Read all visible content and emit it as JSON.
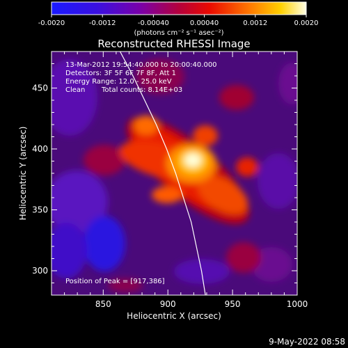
{
  "colorbar": {
    "ticks": [
      "-0.0020",
      "-0.0012",
      "-0.00040",
      "0.00040",
      "0.0012",
      "0.0020"
    ],
    "tick_values": [
      -0.002,
      -0.0012,
      -0.0004,
      0.0004,
      0.0012,
      0.002
    ],
    "range": [
      -0.002,
      0.002
    ],
    "units_label": "(photons cm⁻² s⁻¹ asec⁻²)",
    "colors": [
      "#1a1aff",
      "#5500cc",
      "#9b0060",
      "#e00000",
      "#ff7a00",
      "#ffd000",
      "#ffffe6"
    ]
  },
  "chart_data": {
    "type": "heatmap",
    "title": "Reconstructed RHESSI Image",
    "xlabel": "Heliocentric X (arcsec)",
    "ylabel": "Heliocentric Y (arcsec)",
    "xlim": [
      810,
      1000
    ],
    "ylim": [
      280,
      480
    ],
    "xticks": [
      850,
      900,
      950,
      1000
    ],
    "yticks": [
      300,
      350,
      400,
      450
    ],
    "annotations": [
      "13-Mar-2012 19:54:40.000 to 20:00:40.000",
      "Detectors: 3F 5F 6F 7F 8F, Att 1",
      "Energy Range: 12.0 - 25.0 keV",
      "Clean",
      "Total counts: 8.14E+03"
    ],
    "peak_label": "Position of Peak = [917,386]",
    "peak": [
      917,
      386
    ],
    "limb": [
      [
        863,
        480
      ],
      [
        873,
        460
      ],
      [
        882,
        440
      ],
      [
        891,
        420
      ],
      [
        899,
        400
      ],
      [
        906,
        380
      ],
      [
        912,
        360
      ],
      [
        918,
        340
      ],
      [
        922,
        320
      ],
      [
        926,
        300
      ],
      [
        929,
        280
      ]
    ]
  },
  "footer": {
    "date": "9-May-2022 08:58"
  }
}
